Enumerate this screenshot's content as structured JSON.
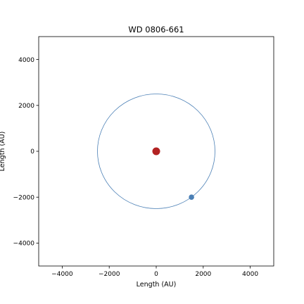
{
  "chart_data": {
    "type": "scatter",
    "title": "WD 0806-661",
    "xlabel": "Length (AU)",
    "ylabel": "Length (AU)",
    "xlim": [
      -5000,
      5000
    ],
    "ylim": [
      -5000,
      5000
    ],
    "xticks": [
      -4000,
      -2000,
      0,
      2000,
      4000
    ],
    "yticks": [
      -4000,
      -2000,
      0,
      2000,
      4000
    ],
    "xtick_labels": [
      "−4000",
      "−2000",
      "0",
      "2000",
      "4000"
    ],
    "ytick_labels": [
      "−4000",
      "−2000",
      "0",
      "2000",
      "4000"
    ],
    "grid": false,
    "orbit": {
      "center": [
        0,
        0
      ],
      "radius": 2500,
      "color": "#4a7fb5"
    },
    "points": [
      {
        "x": 0,
        "y": 0,
        "color": "#b22222"
      },
      {
        "x": 1500,
        "y": -2000,
        "color": "#4a7fb5"
      }
    ]
  }
}
